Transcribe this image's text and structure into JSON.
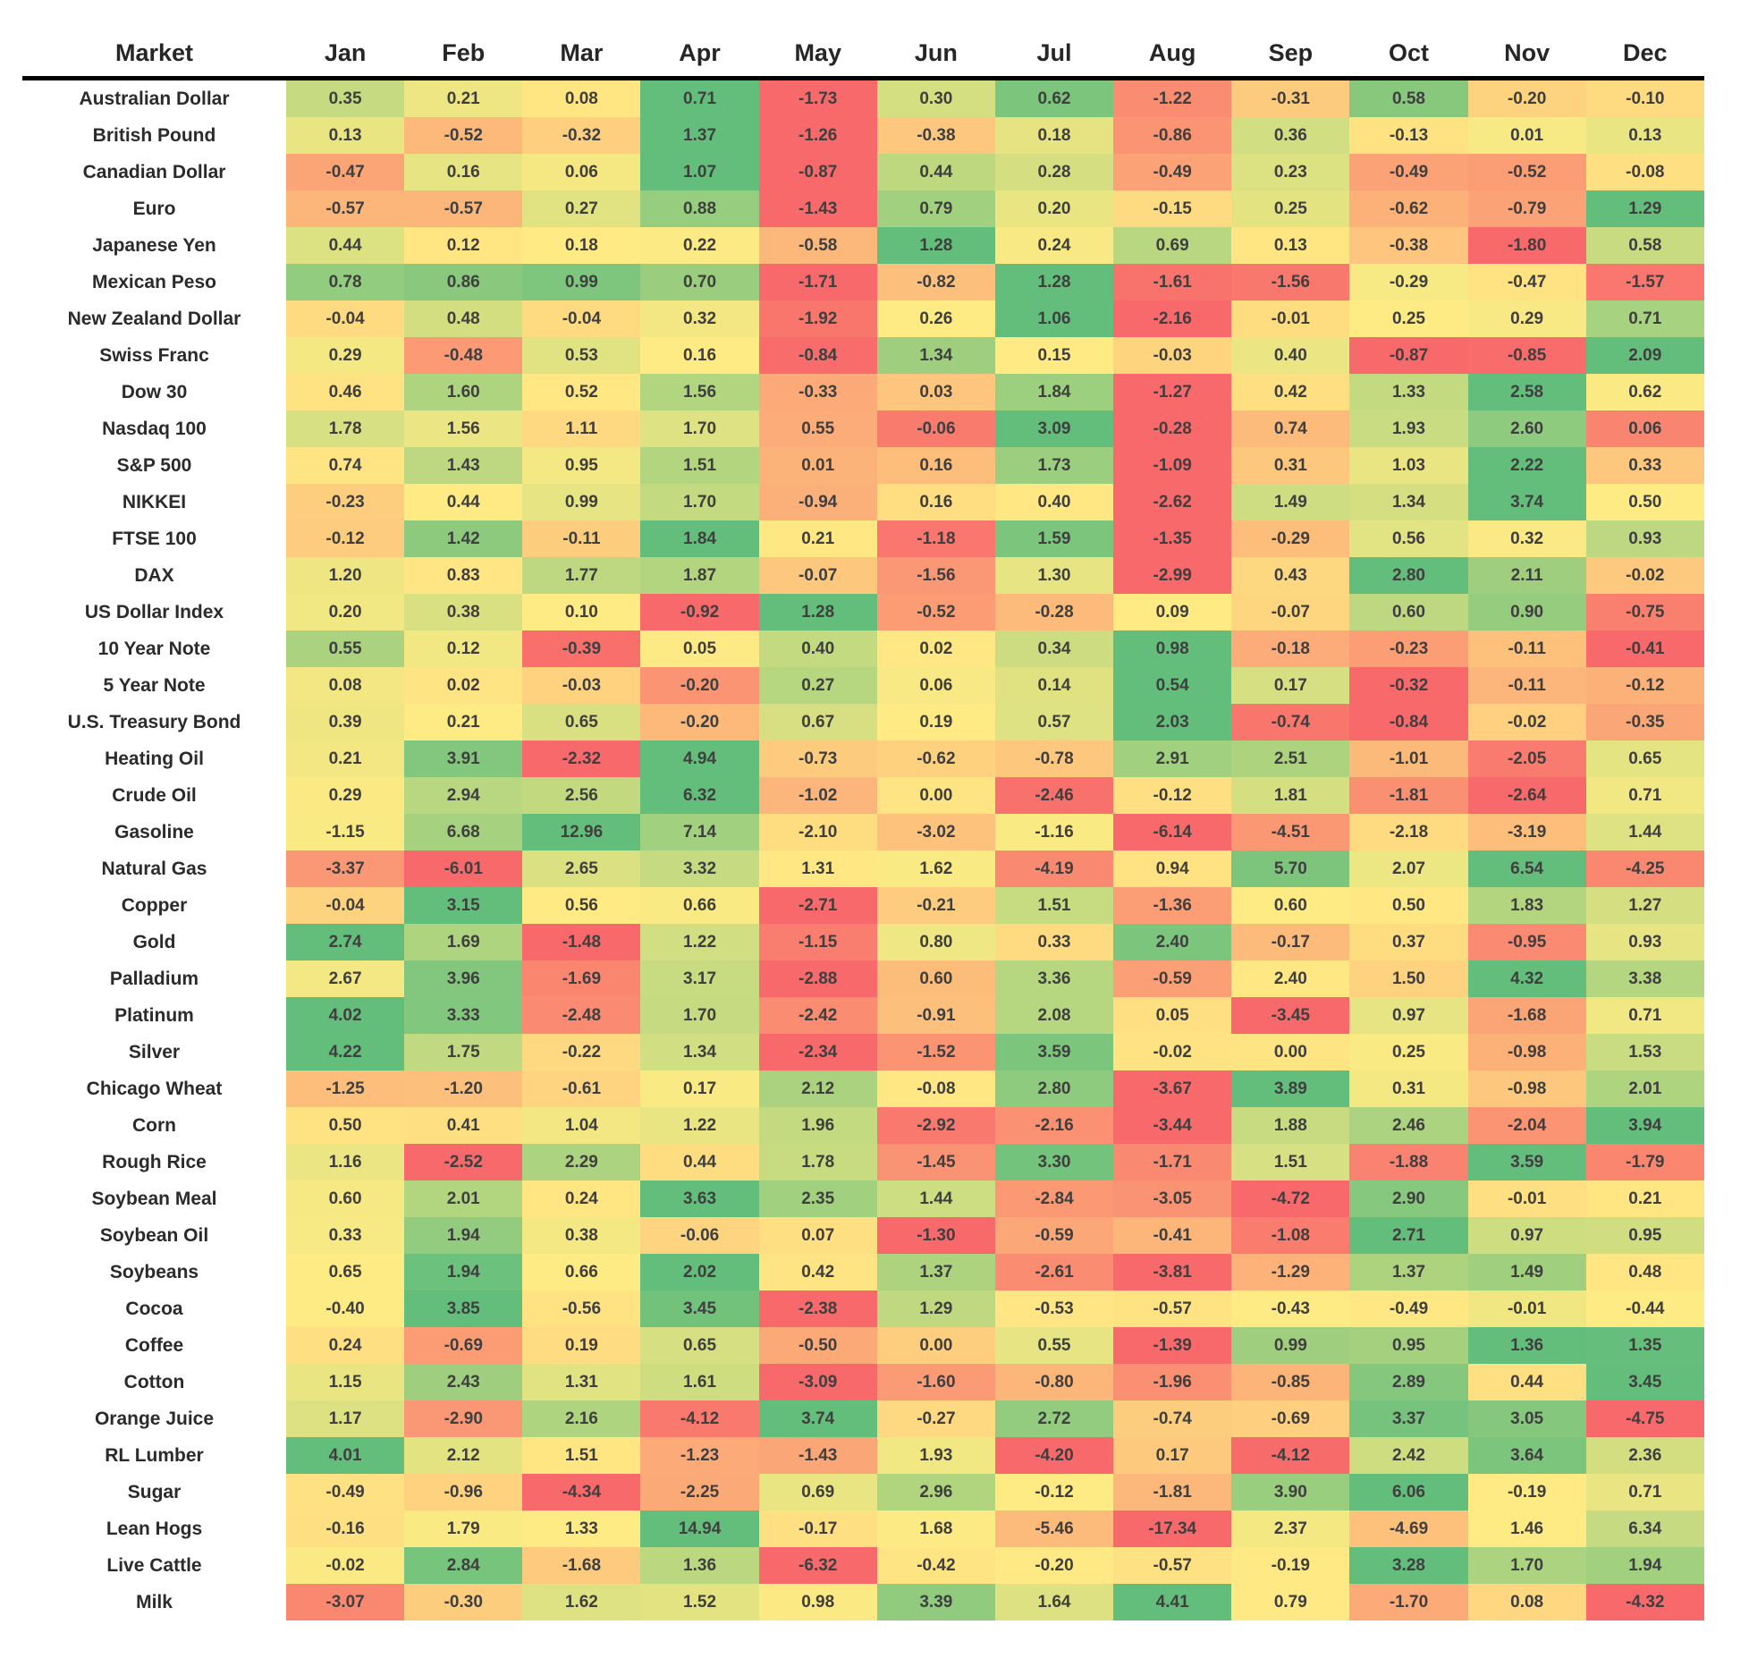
{
  "chart_data": {
    "type": "heatmap",
    "corner_label": "Market",
    "columns": [
      "Jan",
      "Feb",
      "Mar",
      "Apr",
      "May",
      "Jun",
      "Jul",
      "Aug",
      "Sep",
      "Oct",
      "Nov",
      "Dec"
    ],
    "color_scale": {
      "min_color": "#F8696B",
      "mid_color": "#FFEB84",
      "max_color": "#63BE7B",
      "midpoint": "row-median",
      "value_text_color": "#3F3F3F"
    },
    "rows": [
      {
        "market": "Australian Dollar",
        "values": [
          0.35,
          0.21,
          0.08,
          0.71,
          -1.73,
          0.3,
          0.62,
          -1.22,
          -0.31,
          0.58,
          -0.2,
          -0.1
        ]
      },
      {
        "market": "British Pound",
        "values": [
          0.13,
          -0.52,
          -0.32,
          1.37,
          -1.26,
          -0.38,
          0.18,
          -0.86,
          0.36,
          -0.13,
          0.01,
          0.13
        ]
      },
      {
        "market": "Canadian Dollar",
        "values": [
          -0.47,
          0.16,
          0.06,
          1.07,
          -0.87,
          0.44,
          0.28,
          -0.49,
          0.23,
          -0.49,
          -0.52,
          -0.08
        ]
      },
      {
        "market": "Euro",
        "values": [
          -0.57,
          -0.57,
          0.27,
          0.88,
          -1.43,
          0.79,
          0.2,
          -0.15,
          0.25,
          -0.62,
          -0.79,
          1.29
        ]
      },
      {
        "market": "Japanese Yen",
        "values": [
          0.44,
          0.12,
          0.18,
          0.22,
          -0.58,
          1.28,
          0.24,
          0.69,
          0.13,
          -0.38,
          -1.8,
          0.58
        ]
      },
      {
        "market": "Mexican Peso",
        "values": [
          0.78,
          0.86,
          0.99,
          0.7,
          -1.71,
          -0.82,
          1.28,
          -1.61,
          -1.56,
          -0.29,
          -0.47,
          -1.57
        ]
      },
      {
        "market": "New Zealand Dollar",
        "values": [
          -0.04,
          0.48,
          -0.04,
          0.32,
          -1.92,
          0.26,
          1.06,
          -2.16,
          -0.01,
          0.25,
          0.29,
          0.71
        ]
      },
      {
        "market": "Swiss Franc",
        "values": [
          0.29,
          -0.48,
          0.53,
          0.16,
          -0.84,
          1.34,
          0.15,
          -0.03,
          0.4,
          -0.87,
          -0.85,
          2.09
        ]
      },
      {
        "market": "Dow 30",
        "values": [
          0.46,
          1.6,
          0.52,
          1.56,
          -0.33,
          0.03,
          1.84,
          -1.27,
          0.42,
          1.33,
          2.58,
          0.62
        ]
      },
      {
        "market": "Nasdaq 100",
        "values": [
          1.78,
          1.56,
          1.11,
          1.7,
          0.55,
          -0.06,
          3.09,
          -0.28,
          0.74,
          1.93,
          2.6,
          0.06
        ]
      },
      {
        "market": "S&P 500",
        "values": [
          0.74,
          1.43,
          0.95,
          1.51,
          0.01,
          0.16,
          1.73,
          -1.09,
          0.31,
          1.03,
          2.22,
          0.33
        ]
      },
      {
        "market": "NIKKEI",
        "values": [
          -0.23,
          0.44,
          0.99,
          1.7,
          -0.94,
          0.16,
          0.4,
          -2.62,
          1.49,
          1.34,
          3.74,
          0.5
        ]
      },
      {
        "market": "FTSE 100",
        "values": [
          -0.12,
          1.42,
          -0.11,
          1.84,
          0.21,
          -1.18,
          1.59,
          -1.35,
          -0.29,
          0.56,
          0.32,
          0.93
        ]
      },
      {
        "market": "DAX",
        "values": [
          1.2,
          0.83,
          1.77,
          1.87,
          -0.07,
          -1.56,
          1.3,
          -2.99,
          0.43,
          2.8,
          2.11,
          -0.02
        ]
      },
      {
        "market": "US Dollar Index",
        "values": [
          0.2,
          0.38,
          0.1,
          -0.92,
          1.28,
          -0.52,
          -0.28,
          0.09,
          -0.07,
          0.6,
          0.9,
          -0.75
        ]
      },
      {
        "market": "10 Year Note",
        "values": [
          0.55,
          0.12,
          -0.39,
          0.05,
          0.4,
          0.02,
          0.34,
          0.98,
          -0.18,
          -0.23,
          -0.11,
          -0.41
        ]
      },
      {
        "market": "5 Year Note",
        "values": [
          0.08,
          0.02,
          -0.03,
          -0.2,
          0.27,
          0.06,
          0.14,
          0.54,
          0.17,
          -0.32,
          -0.11,
          -0.12
        ]
      },
      {
        "market": "U.S. Treasury Bond",
        "values": [
          0.39,
          0.21,
          0.65,
          -0.2,
          0.67,
          0.19,
          0.57,
          2.03,
          -0.74,
          -0.84,
          -0.02,
          -0.35
        ]
      },
      {
        "market": "Heating Oil",
        "values": [
          0.21,
          3.91,
          -2.32,
          4.94,
          -0.73,
          -0.62,
          -0.78,
          2.91,
          2.51,
          -1.01,
          -2.05,
          0.65
        ]
      },
      {
        "market": "Crude Oil",
        "values": [
          0.29,
          2.94,
          2.56,
          6.32,
          -1.02,
          0.0,
          -2.46,
          -0.12,
          1.81,
          -1.81,
          -2.64,
          0.71
        ]
      },
      {
        "market": "Gasoline",
        "values": [
          -1.15,
          6.68,
          12.96,
          7.14,
          -2.1,
          -3.02,
          -1.16,
          -6.14,
          -4.51,
          -2.18,
          -3.19,
          1.44
        ]
      },
      {
        "market": "Natural Gas",
        "values": [
          -3.37,
          -6.01,
          2.65,
          3.32,
          1.31,
          1.62,
          -4.19,
          0.94,
          5.7,
          2.07,
          6.54,
          -4.25
        ]
      },
      {
        "market": "Copper",
        "values": [
          -0.04,
          3.15,
          0.56,
          0.66,
          -2.71,
          -0.21,
          1.51,
          -1.36,
          0.6,
          0.5,
          1.83,
          1.27
        ]
      },
      {
        "market": "Gold",
        "values": [
          2.74,
          1.69,
          -1.48,
          1.22,
          -1.15,
          0.8,
          0.33,
          2.4,
          -0.17,
          0.37,
          -0.95,
          0.93
        ]
      },
      {
        "market": "Palladium",
        "values": [
          2.67,
          3.96,
          -1.69,
          3.17,
          -2.88,
          0.6,
          3.36,
          -0.59,
          2.4,
          1.5,
          4.32,
          3.38
        ]
      },
      {
        "market": "Platinum",
        "values": [
          4.02,
          3.33,
          -2.48,
          1.7,
          -2.42,
          -0.91,
          2.08,
          0.05,
          -3.45,
          0.97,
          -1.68,
          0.71
        ]
      },
      {
        "market": "Silver",
        "values": [
          4.22,
          1.75,
          -0.22,
          1.34,
          -2.34,
          -1.52,
          3.59,
          -0.02,
          0.0,
          0.25,
          -0.98,
          1.53
        ]
      },
      {
        "market": "Chicago Wheat",
        "values": [
          -1.25,
          -1.2,
          -0.61,
          0.17,
          2.12,
          -0.08,
          2.8,
          -3.67,
          3.89,
          0.31,
          -0.98,
          2.01
        ]
      },
      {
        "market": "Corn",
        "values": [
          0.5,
          0.41,
          1.04,
          1.22,
          1.96,
          -2.92,
          -2.16,
          -3.44,
          1.88,
          2.46,
          -2.04,
          3.94
        ]
      },
      {
        "market": "Rough Rice",
        "values": [
          1.16,
          -2.52,
          2.29,
          0.44,
          1.78,
          -1.45,
          3.3,
          -1.71,
          1.51,
          -1.88,
          3.59,
          -1.79
        ]
      },
      {
        "market": "Soybean Meal",
        "values": [
          0.6,
          2.01,
          0.24,
          3.63,
          2.35,
          1.44,
          -2.84,
          -3.05,
          -4.72,
          2.9,
          -0.01,
          0.21
        ]
      },
      {
        "market": "Soybean Oil",
        "values": [
          0.33,
          1.94,
          0.38,
          -0.06,
          0.07,
          -1.3,
          -0.59,
          -0.41,
          -1.08,
          2.71,
          0.97,
          0.95
        ]
      },
      {
        "market": "Soybeans",
        "values": [
          0.65,
          1.94,
          0.66,
          2.02,
          0.42,
          1.37,
          -2.61,
          -3.81,
          -1.29,
          1.37,
          1.49,
          0.48
        ]
      },
      {
        "market": "Cocoa",
        "values": [
          -0.4,
          3.85,
          -0.56,
          3.45,
          -2.38,
          1.29,
          -0.53,
          -0.57,
          -0.43,
          -0.49,
          -0.01,
          -0.44
        ]
      },
      {
        "market": "Coffee",
        "values": [
          0.24,
          -0.69,
          0.19,
          0.65,
          -0.5,
          0.0,
          0.55,
          -1.39,
          0.99,
          0.95,
          1.36,
          1.35
        ]
      },
      {
        "market": "Cotton",
        "values": [
          1.15,
          2.43,
          1.31,
          1.61,
          -3.09,
          -1.6,
          -0.8,
          -1.96,
          -0.85,
          2.89,
          0.44,
          3.45
        ]
      },
      {
        "market": "Orange Juice",
        "values": [
          1.17,
          -2.9,
          2.16,
          -4.12,
          3.74,
          -0.27,
          2.72,
          -0.74,
          -0.69,
          3.37,
          3.05,
          -4.75
        ]
      },
      {
        "market": "RL Lumber",
        "values": [
          4.01,
          2.12,
          1.51,
          -1.23,
          -1.43,
          1.93,
          -4.2,
          0.17,
          -4.12,
          2.42,
          3.64,
          2.36
        ]
      },
      {
        "market": "Sugar",
        "values": [
          -0.49,
          -0.96,
          -4.34,
          -2.25,
          0.69,
          2.96,
          -0.12,
          -1.81,
          3.9,
          6.06,
          -0.19,
          0.71
        ]
      },
      {
        "market": "Lean Hogs",
        "values": [
          -0.16,
          1.79,
          1.33,
          14.94,
          -0.17,
          1.68,
          -5.46,
          -17.34,
          2.37,
          -4.69,
          1.46,
          6.34
        ]
      },
      {
        "market": "Live Cattle",
        "values": [
          -0.02,
          2.84,
          -1.68,
          1.36,
          -6.32,
          -0.42,
          -0.2,
          -0.57,
          -0.19,
          3.28,
          1.7,
          1.94
        ]
      },
      {
        "market": "Milk",
        "values": [
          -3.07,
          -0.3,
          1.62,
          1.52,
          0.98,
          3.39,
          1.64,
          4.41,
          0.79,
          -1.7,
          0.08,
          -4.32
        ]
      }
    ]
  }
}
